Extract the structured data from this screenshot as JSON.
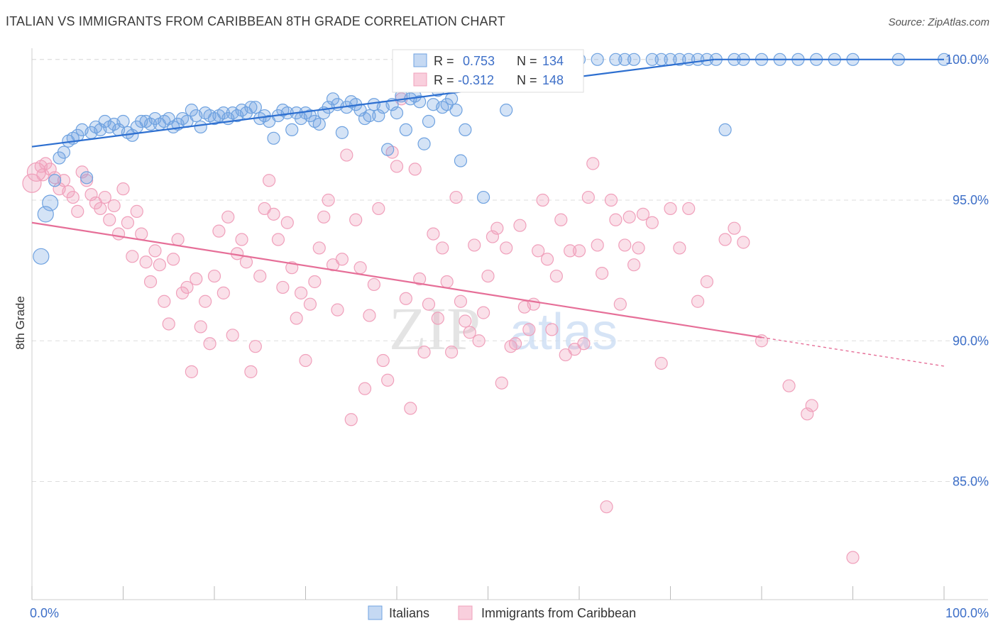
{
  "title": "ITALIAN VS IMMIGRANTS FROM CARIBBEAN 8TH GRADE CORRELATION CHART",
  "source": "Source: ZipAtlas.com",
  "watermark": {
    "part1": "ZIP",
    "part2": "atlas"
  },
  "colors": {
    "blue": "#6fa2e0",
    "blue_line": "#2d6fd0",
    "blue_text": "#3d6fc8",
    "pink": "#f0a0bb",
    "pink_line": "#e66f98",
    "grid": "#dddddd"
  },
  "stats": [
    {
      "r_label": "R =",
      "r_value": "0.753",
      "n_label": "N =",
      "n_value": "134"
    },
    {
      "r_label": "R =",
      "r_value": "-0.312",
      "n_label": "N =",
      "n_value": "148"
    }
  ],
  "chart_data": {
    "type": "scatter",
    "xlabel": "",
    "ylabel": "8th Grade",
    "xlim": [
      0,
      100
    ],
    "ylim": [
      80.8,
      100.6
    ],
    "x_tick_labels": [
      "0.0%",
      "100.0%"
    ],
    "y_ticks": [
      85,
      90,
      95,
      100
    ],
    "y_tick_labels": [
      "85.0%",
      "90.0%",
      "95.0%",
      "100.0%"
    ],
    "grid": true,
    "legend_position": "bottom-center",
    "series": [
      {
        "name": "Italians",
        "color": "#6fa2e0",
        "trend": {
          "x": [
            0,
            74.8
          ],
          "y": [
            96.9,
            100.0
          ]
        },
        "points": [
          [
            1,
            93
          ],
          [
            1.5,
            94.5
          ],
          [
            2,
            94.9
          ],
          [
            2.5,
            95.7
          ],
          [
            3,
            96.5
          ],
          [
            3.5,
            96.7
          ],
          [
            4,
            97.1
          ],
          [
            4.5,
            97.2
          ],
          [
            5,
            97.3
          ],
          [
            5.5,
            97.5
          ],
          [
            6,
            95.8
          ],
          [
            6.5,
            97.4
          ],
          [
            7,
            97.6
          ],
          [
            7.5,
            97.5
          ],
          [
            8,
            97.8
          ],
          [
            8.5,
            97.6
          ],
          [
            9,
            97.7
          ],
          [
            9.5,
            97.5
          ],
          [
            10,
            97.8
          ],
          [
            10.5,
            97.4
          ],
          [
            11,
            97.3
          ],
          [
            11.5,
            97.6
          ],
          [
            12,
            97.8
          ],
          [
            12.5,
            97.8
          ],
          [
            13,
            97.7
          ],
          [
            13.5,
            97.9
          ],
          [
            14,
            97.7
          ],
          [
            14.5,
            97.8
          ],
          [
            15,
            97.9
          ],
          [
            15.5,
            97.6
          ],
          [
            16,
            97.7
          ],
          [
            16.5,
            97.9
          ],
          [
            17,
            97.8
          ],
          [
            17.5,
            98.2
          ],
          [
            18,
            98.0
          ],
          [
            18.5,
            97.6
          ],
          [
            19,
            98.1
          ],
          [
            19.5,
            98.0
          ],
          [
            20,
            97.9
          ],
          [
            20.5,
            98.0
          ],
          [
            21,
            98.1
          ],
          [
            21.5,
            97.9
          ],
          [
            22,
            98.1
          ],
          [
            22.5,
            98.0
          ],
          [
            23,
            98.2
          ],
          [
            23.5,
            98.1
          ],
          [
            24,
            98.3
          ],
          [
            24.5,
            98.3
          ],
          [
            25,
            97.9
          ],
          [
            25.5,
            98.0
          ],
          [
            26,
            97.8
          ],
          [
            26.5,
            97.2
          ],
          [
            27,
            98.0
          ],
          [
            27.5,
            98.2
          ],
          [
            28,
            98.1
          ],
          [
            28.5,
            97.5
          ],
          [
            29,
            98.1
          ],
          [
            29.5,
            97.9
          ],
          [
            30,
            98.1
          ],
          [
            30.5,
            98.0
          ],
          [
            31,
            97.8
          ],
          [
            31.5,
            97.7
          ],
          [
            32,
            98.1
          ],
          [
            32.5,
            98.3
          ],
          [
            33,
            98.6
          ],
          [
            33.5,
            98.4
          ],
          [
            34,
            97.4
          ],
          [
            34.5,
            98.3
          ],
          [
            35,
            98.5
          ],
          [
            35.5,
            98.4
          ],
          [
            36,
            98.2
          ],
          [
            36.5,
            97.9
          ],
          [
            37,
            98.0
          ],
          [
            37.5,
            98.4
          ],
          [
            38,
            98.0
          ],
          [
            38.5,
            98.3
          ],
          [
            39,
            96.8
          ],
          [
            39.5,
            98.4
          ],
          [
            40,
            98.1
          ],
          [
            40.5,
            98.7
          ],
          [
            41,
            97.5
          ],
          [
            41.5,
            98.6
          ],
          [
            42,
            98.7
          ],
          [
            42.5,
            98.5
          ],
          [
            43,
            97.0
          ],
          [
            43.5,
            97.8
          ],
          [
            44,
            98.4
          ],
          [
            44.5,
            98.9
          ],
          [
            45,
            98.3
          ],
          [
            45.5,
            98.4
          ],
          [
            46,
            98.6
          ],
          [
            46.5,
            98.2
          ],
          [
            47,
            96.4
          ],
          [
            47.5,
            97.5
          ],
          [
            48,
            99.1
          ],
          [
            48.5,
            99.2
          ],
          [
            49,
            99.4
          ],
          [
            49.5,
            95.1
          ],
          [
            50,
            99.3
          ],
          [
            50.5,
            99.5
          ],
          [
            51,
            99.6
          ],
          [
            51.5,
            99.4
          ],
          [
            52,
            98.2
          ],
          [
            53,
            99.7
          ],
          [
            54,
            100
          ],
          [
            55,
            100
          ],
          [
            56,
            100
          ],
          [
            57,
            100
          ],
          [
            58,
            100
          ],
          [
            60,
            100
          ],
          [
            62,
            100
          ],
          [
            64,
            100
          ],
          [
            65,
            100
          ],
          [
            66,
            100
          ],
          [
            68,
            100
          ],
          [
            69,
            100
          ],
          [
            70,
            100
          ],
          [
            71,
            100
          ],
          [
            72,
            100
          ],
          [
            73,
            100
          ],
          [
            74,
            100
          ],
          [
            75,
            100
          ],
          [
            76,
            97.5
          ],
          [
            77,
            100
          ],
          [
            78,
            100
          ],
          [
            80,
            100
          ],
          [
            82,
            100
          ],
          [
            84,
            100
          ],
          [
            86,
            100
          ],
          [
            88,
            100
          ],
          [
            90,
            100
          ],
          [
            95,
            100
          ],
          [
            100,
            100
          ]
        ]
      },
      {
        "name": "Immigrants from Caribbean",
        "color": "#f0a0bb",
        "trend": {
          "x": [
            0,
            100
          ],
          "y": [
            94.2,
            89.1
          ],
          "solid_to_x": 80
        },
        "points": [
          [
            0,
            95.6
          ],
          [
            0.5,
            96.0
          ],
          [
            1,
            96.2
          ],
          [
            1.2,
            95.9
          ],
          [
            1.5,
            96.3
          ],
          [
            2,
            96.1
          ],
          [
            2.5,
            95.8
          ],
          [
            3,
            95.4
          ],
          [
            3.5,
            95.7
          ],
          [
            4,
            95.3
          ],
          [
            4.5,
            95.1
          ],
          [
            5,
            94.6
          ],
          [
            5.5,
            96.0
          ],
          [
            6,
            95.7
          ],
          [
            6.5,
            95.2
          ],
          [
            7,
            94.9
          ],
          [
            7.5,
            94.7
          ],
          [
            8,
            95.1
          ],
          [
            8.5,
            94.3
          ],
          [
            9,
            94.8
          ],
          [
            9.5,
            93.8
          ],
          [
            10,
            95.4
          ],
          [
            10.5,
            94.2
          ],
          [
            11,
            93.0
          ],
          [
            11.5,
            94.6
          ],
          [
            12,
            93.8
          ],
          [
            12.5,
            92.8
          ],
          [
            13,
            92.1
          ],
          [
            13.5,
            93.2
          ],
          [
            14,
            92.7
          ],
          [
            14.5,
            91.4
          ],
          [
            15,
            90.6
          ],
          [
            15.5,
            92.9
          ],
          [
            16,
            93.6
          ],
          [
            16.5,
            91.7
          ],
          [
            17,
            91.9
          ],
          [
            17.5,
            88.9
          ],
          [
            18,
            92.2
          ],
          [
            18.5,
            90.5
          ],
          [
            19,
            91.4
          ],
          [
            19.5,
            89.9
          ],
          [
            20,
            92.3
          ],
          [
            20.5,
            93.9
          ],
          [
            21,
            91.7
          ],
          [
            21.5,
            94.4
          ],
          [
            22,
            90.2
          ],
          [
            22.5,
            93.1
          ],
          [
            23,
            93.6
          ],
          [
            23.5,
            92.8
          ],
          [
            24,
            88.9
          ],
          [
            24.5,
            89.8
          ],
          [
            25,
            92.3
          ],
          [
            25.5,
            94.7
          ],
          [
            26,
            95.7
          ],
          [
            26.5,
            94.5
          ],
          [
            27,
            93.6
          ],
          [
            27.5,
            91.9
          ],
          [
            28,
            94.2
          ],
          [
            28.5,
            92.6
          ],
          [
            29,
            90.8
          ],
          [
            29.5,
            91.7
          ],
          [
            30,
            89.3
          ],
          [
            30.5,
            91.3
          ],
          [
            31,
            92.1
          ],
          [
            31.5,
            93.3
          ],
          [
            32,
            94.4
          ],
          [
            32.5,
            95.0
          ],
          [
            33,
            92.7
          ],
          [
            33.5,
            91.1
          ],
          [
            34,
            92.9
          ],
          [
            34.5,
            96.6
          ],
          [
            35,
            87.2
          ],
          [
            35.5,
            94.3
          ],
          [
            36,
            92.6
          ],
          [
            36.5,
            88.3
          ],
          [
            37,
            90.9
          ],
          [
            37.5,
            92.0
          ],
          [
            38,
            94.7
          ],
          [
            38.5,
            89.3
          ],
          [
            39,
            88.6
          ],
          [
            39.5,
            96.7
          ],
          [
            40,
            96.2
          ],
          [
            40.5,
            98.6
          ],
          [
            41,
            91.5
          ],
          [
            41.5,
            87.6
          ],
          [
            42,
            96.1
          ],
          [
            42.5,
            92.2
          ],
          [
            43,
            89.6
          ],
          [
            43.5,
            91.3
          ],
          [
            44,
            93.8
          ],
          [
            44.5,
            90.8
          ],
          [
            45,
            93.3
          ],
          [
            45.5,
            92.1
          ],
          [
            46,
            89.6
          ],
          [
            46.5,
            95.1
          ],
          [
            47,
            91.4
          ],
          [
            47.5,
            90.7
          ],
          [
            48,
            90.3
          ],
          [
            48.5,
            93.4
          ],
          [
            49,
            90.0
          ],
          [
            49.5,
            91.0
          ],
          [
            50,
            92.3
          ],
          [
            50.5,
            93.7
          ],
          [
            51,
            94.0
          ],
          [
            51.5,
            88.5
          ],
          [
            52,
            93.3
          ],
          [
            52.5,
            89.8
          ],
          [
            53,
            89.9
          ],
          [
            53.5,
            94.1
          ],
          [
            54,
            91.2
          ],
          [
            54.5,
            90.4
          ],
          [
            55,
            91.3
          ],
          [
            55.5,
            93.2
          ],
          [
            56,
            95.0
          ],
          [
            56.5,
            92.9
          ],
          [
            57,
            90.4
          ],
          [
            57.5,
            92.3
          ],
          [
            58,
            94.3
          ],
          [
            58.5,
            89.5
          ],
          [
            59,
            93.2
          ],
          [
            59.5,
            89.7
          ],
          [
            60,
            93.2
          ],
          [
            60.5,
            89.9
          ],
          [
            61,
            95.1
          ],
          [
            61.5,
            96.3
          ],
          [
            62,
            93.4
          ],
          [
            62.5,
            92.4
          ],
          [
            63,
            84.1
          ],
          [
            63.5,
            95.0
          ],
          [
            64,
            94.3
          ],
          [
            64.5,
            91.3
          ],
          [
            65,
            93.4
          ],
          [
            65.5,
            94.4
          ],
          [
            66,
            92.7
          ],
          [
            66.5,
            93.3
          ],
          [
            67,
            94.5
          ],
          [
            68,
            94.2
          ],
          [
            69,
            89.2
          ],
          [
            70,
            94.7
          ],
          [
            71,
            93.3
          ],
          [
            72,
            94.7
          ],
          [
            73,
            91.4
          ],
          [
            74,
            92.1
          ],
          [
            76,
            93.6
          ],
          [
            77,
            94.0
          ],
          [
            78,
            93.5
          ],
          [
            80,
            90.0
          ],
          [
            83,
            88.4
          ],
          [
            85,
            87.4
          ],
          [
            85.5,
            87.7
          ],
          [
            90,
            82.3
          ]
        ]
      }
    ]
  },
  "legend": [
    {
      "label": "Italians"
    },
    {
      "label": "Immigrants from Caribbean"
    }
  ]
}
